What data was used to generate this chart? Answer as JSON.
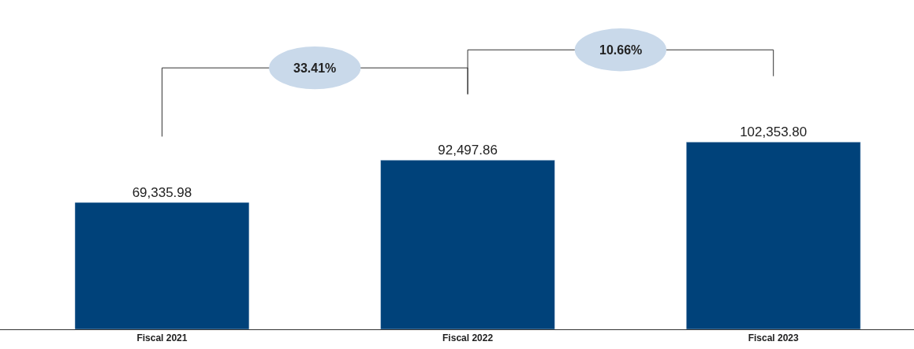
{
  "chart_data": {
    "type": "bar",
    "categories": [
      "Fiscal 2021",
      "Fiscal 2022",
      "Fiscal 2023"
    ],
    "values": [
      69335.98,
      92497.86,
      102353.8
    ],
    "value_labels": [
      "69,335.98",
      "92,497.86",
      "102,353.80"
    ],
    "color": "#00427a",
    "ylim": [
      0,
      180000
    ],
    "tick_labels": "x",
    "legend": false,
    "annotations": [
      "33.41%",
      "10.66%"
    ]
  }
}
